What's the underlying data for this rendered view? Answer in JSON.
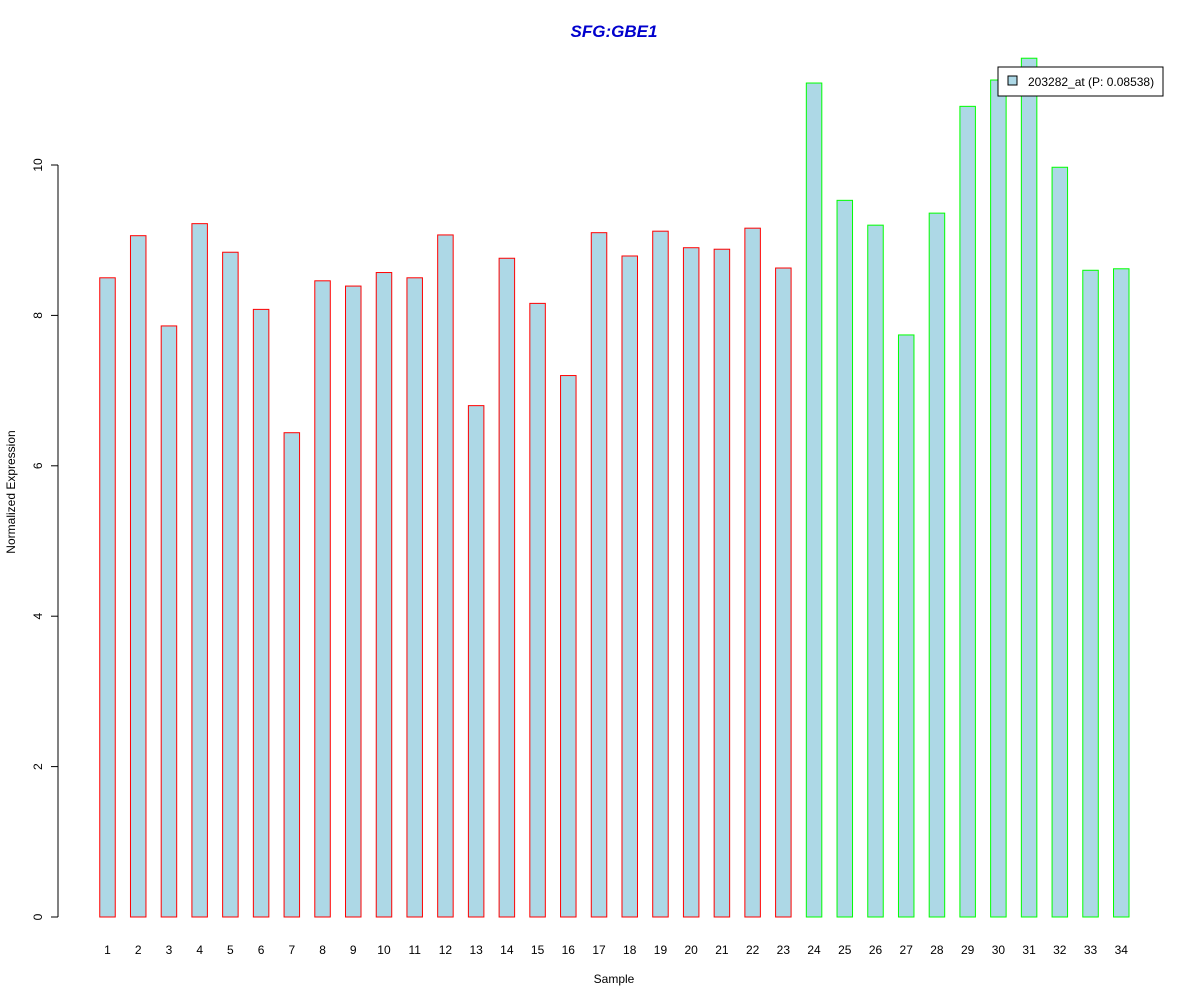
{
  "chart_data": {
    "type": "bar",
    "title": "SFG:GBE1",
    "xlabel": "Sample",
    "ylabel": "Normalized Expression",
    "categories": [
      "1",
      "2",
      "3",
      "4",
      "5",
      "6",
      "7",
      "8",
      "9",
      "10",
      "11",
      "12",
      "13",
      "14",
      "15",
      "16",
      "17",
      "18",
      "19",
      "20",
      "21",
      "22",
      "23",
      "24",
      "25",
      "26",
      "27",
      "28",
      "29",
      "30",
      "31",
      "32",
      "33",
      "34"
    ],
    "series": [
      {
        "name": "203282_at (P: 0.08538)",
        "values": [
          8.5,
          9.06,
          7.86,
          9.22,
          8.84,
          8.08,
          6.44,
          8.46,
          8.39,
          8.57,
          8.5,
          9.07,
          6.8,
          8.76,
          8.16,
          7.2,
          9.1,
          8.79,
          9.12,
          8.9,
          8.88,
          9.16,
          8.63,
          11.09,
          9.53,
          9.2,
          7.74,
          9.36,
          10.78,
          11.13,
          11.42,
          9.97,
          8.6,
          8.62
        ]
      }
    ],
    "bar_fill": "#add8e6",
    "group_border_colors": [
      "#ff0000",
      "#00ff00"
    ],
    "group_sizes": [
      23,
      11
    ],
    "title_color": "#0000cd",
    "ylim": [
      0,
      11.5
    ],
    "yticks": [
      0,
      2,
      4,
      6,
      8,
      10
    ],
    "grid": false,
    "legend_position": "top-right",
    "legend": {
      "label": "203282_at (P: 0.08538)"
    }
  }
}
